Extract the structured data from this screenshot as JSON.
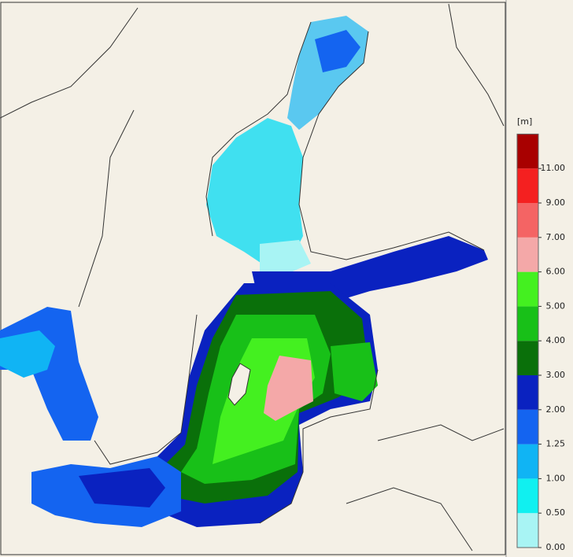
{
  "legend": {
    "unit": "[m]",
    "ticks": [
      {
        "value": 0,
        "label": "0.00"
      },
      {
        "value": 0.5,
        "label": "0.50"
      },
      {
        "value": 1,
        "label": "1.00"
      },
      {
        "value": 1.25,
        "label": "1.25"
      },
      {
        "value": 2,
        "label": "2.00"
      },
      {
        "value": 3,
        "label": "3.00"
      },
      {
        "value": 4,
        "label": "4.00"
      },
      {
        "value": 5,
        "label": "5.00"
      },
      {
        "value": 6,
        "label": "6.00"
      },
      {
        "value": 7,
        "label": "7.00"
      },
      {
        "value": 9,
        "label": "9.00"
      },
      {
        "value": 11,
        "label": "11.00"
      }
    ],
    "colors": [
      "#a8f4f4",
      "#10f0f0",
      "#10b4f4",
      "#1464f0",
      "#0a22c0",
      "#0a700a",
      "#18c018",
      "#44f020",
      "#f4a8a8",
      "#f46464",
      "#f42020",
      "#a80000"
    ]
  }
}
